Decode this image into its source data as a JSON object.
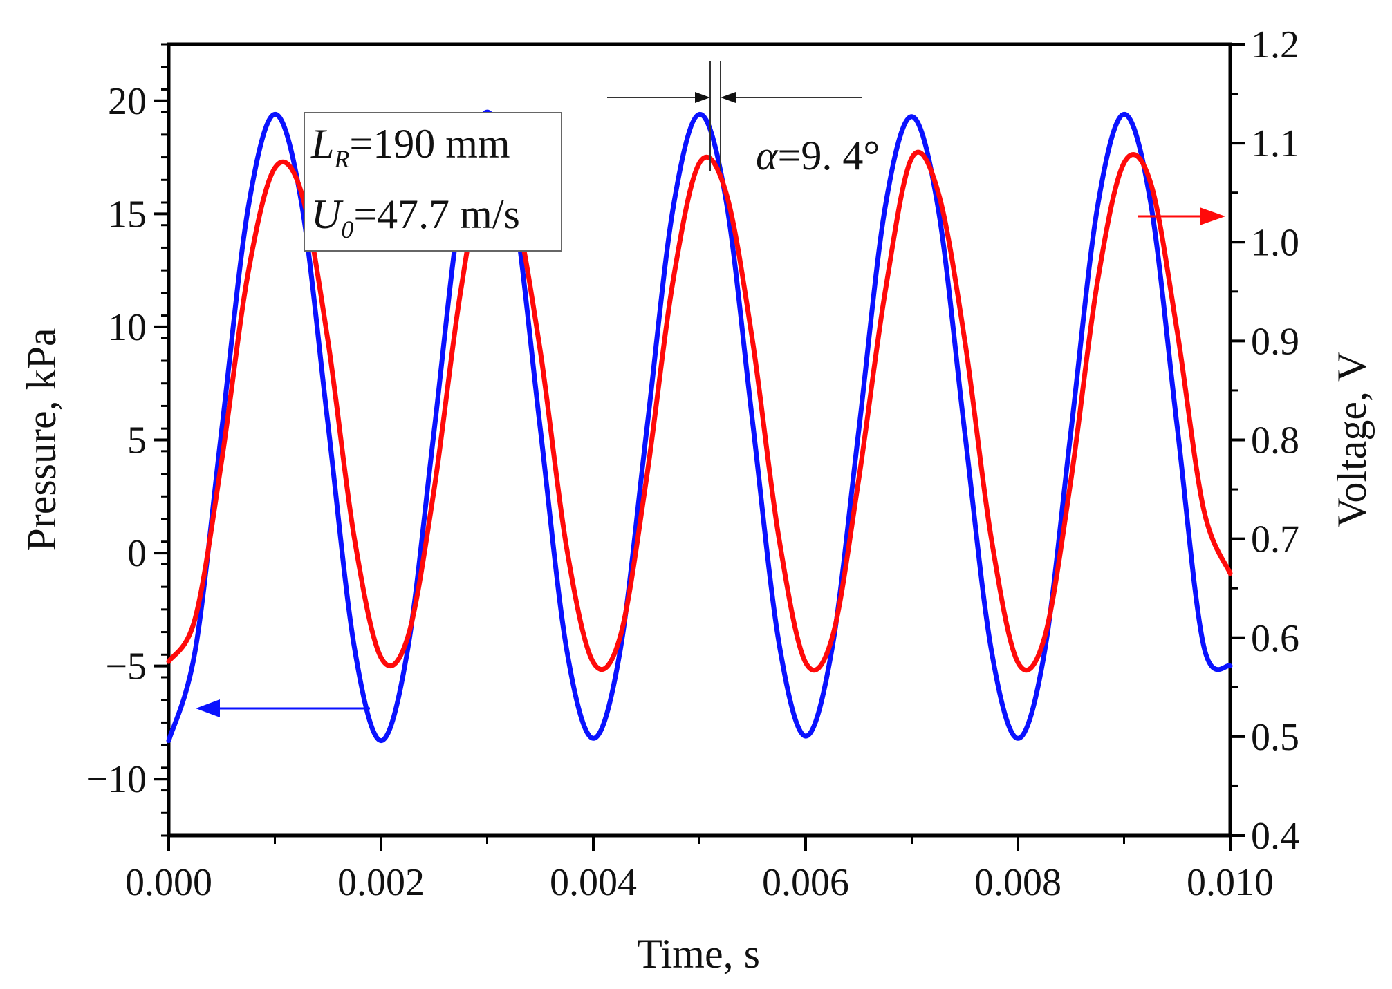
{
  "chart_data": {
    "type": "line",
    "title": "",
    "xlabel": "Time, s",
    "ylabel_left": "Pressure, kPa",
    "ylabel_right": "Voltage, V",
    "xlim": [
      0.0,
      0.01
    ],
    "ylim_left": [
      -12.5,
      22.5
    ],
    "ylim_right": [
      0.4,
      1.2
    ],
    "x_ticks": [
      "0.000",
      "0.002",
      "0.004",
      "0.006",
      "0.008",
      "0.010"
    ],
    "y_left_ticks": [
      "−10",
      "−5",
      "0",
      "5",
      "10",
      "15",
      "20"
    ],
    "y_right_ticks": [
      "0.4",
      "0.5",
      "0.6",
      "0.7",
      "0.8",
      "0.9",
      "1.0",
      "1.1",
      "1.2"
    ],
    "grid": false,
    "series": [
      {
        "name": "Pressure",
        "axis": "left",
        "color": "#0a12ff",
        "unit": "kPa",
        "x": [
          0.0,
          0.00025,
          0.0005,
          0.00075,
          0.001,
          0.00125,
          0.0015,
          0.00175,
          0.002,
          0.00225,
          0.0025,
          0.00275,
          0.003,
          0.00325,
          0.0035,
          0.00375,
          0.004,
          0.00425,
          0.0045,
          0.00475,
          0.005,
          0.00525,
          0.0055,
          0.00575,
          0.006,
          0.00625,
          0.0065,
          0.00675,
          0.007,
          0.00725,
          0.0075,
          0.00775,
          0.008,
          0.00825,
          0.0085,
          0.00875,
          0.009,
          0.00925,
          0.0095,
          0.00975,
          0.01
        ],
        "y": [
          -8.3,
          -4.3,
          5.5,
          15.3,
          19.4,
          15.5,
          5.7,
          -4.2,
          -8.3,
          -4.3,
          5.4,
          15.3,
          19.5,
          15.4,
          5.5,
          -4.3,
          -8.2,
          -4.4,
          5.3,
          15.2,
          19.4,
          15.6,
          5.8,
          -4.0,
          -8.1,
          -4.2,
          5.4,
          15.3,
          19.3,
          15.2,
          5.3,
          -4.3,
          -8.2,
          -4.4,
          5.4,
          15.3,
          19.4,
          15.5,
          5.6,
          -4.1,
          -5.0
        ]
      },
      {
        "name": "Voltage",
        "axis": "right",
        "color": "#ff0a0a",
        "unit": "V",
        "x": [
          0.0,
          0.00025,
          0.0005,
          0.00075,
          0.001,
          0.00125,
          0.0015,
          0.00175,
          0.002,
          0.00225,
          0.0025,
          0.00275,
          0.003,
          0.00325,
          0.0035,
          0.00375,
          0.004,
          0.00425,
          0.0045,
          0.00475,
          0.005,
          0.00525,
          0.0055,
          0.00575,
          0.006,
          0.00625,
          0.0065,
          0.00675,
          0.007,
          0.00725,
          0.0075,
          0.00775,
          0.008,
          0.00825,
          0.0085,
          0.00875,
          0.009,
          0.00925,
          0.0095,
          0.00975,
          0.01
        ],
        "y": [
          0.576,
          0.62,
          0.78,
          0.97,
          1.075,
          1.05,
          0.9,
          0.7,
          0.58,
          0.6,
          0.75,
          0.95,
          1.085,
          1.04,
          0.89,
          0.69,
          0.575,
          0.6,
          0.76,
          0.96,
          1.08,
          1.05,
          0.9,
          0.7,
          0.575,
          0.6,
          0.76,
          0.95,
          1.085,
          1.05,
          0.9,
          0.7,
          0.575,
          0.6,
          0.76,
          0.96,
          1.08,
          1.06,
          0.91,
          0.73,
          0.665
        ]
      }
    ],
    "annotations": {
      "box_line1_label": "L",
      "box_line1_sub": "R",
      "box_line1_value": "=190 mm",
      "box_line2_label": "U",
      "box_line2_sub": "0",
      "box_line2_value": "=47.7 m/s",
      "phase_symbol": "α",
      "phase_value": "=9. 4°",
      "phase_lag_deg": 9.4
    }
  }
}
